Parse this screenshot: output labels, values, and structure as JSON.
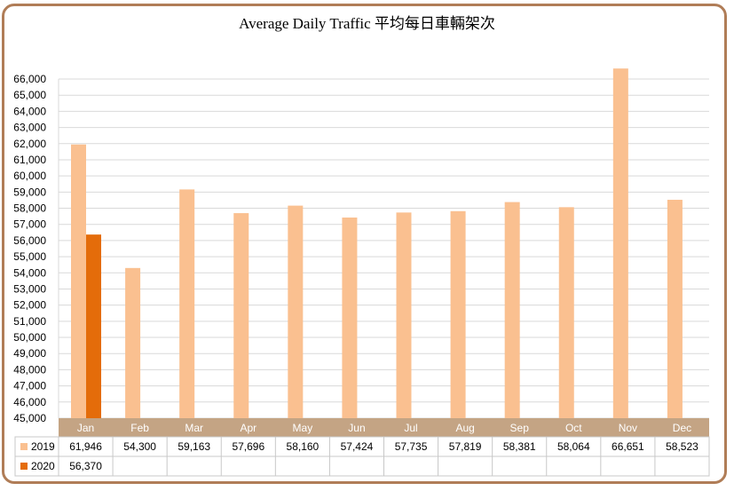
{
  "chart_data": {
    "type": "bar",
    "title": "Average Daily Traffic 平均每日車輛架次",
    "categories": [
      "Jan",
      "Feb",
      "Mar",
      "Apr",
      "May",
      "Jun",
      "Jul",
      "Aug",
      "Sep",
      "Oct",
      "Nov",
      "Dec"
    ],
    "series": [
      {
        "name": "2019",
        "color": "#fac090",
        "values": [
          61946,
          54300,
          59163,
          57696,
          58160,
          57424,
          57735,
          57819,
          58381,
          58064,
          66651,
          58523
        ],
        "labels": [
          "61,946",
          "54,300",
          "59,163",
          "57,696",
          "58,160",
          "57,424",
          "57,735",
          "57,819",
          "58,381",
          "58,064",
          "66,651",
          "58,523"
        ]
      },
      {
        "name": "2020",
        "color": "#e46c0a",
        "values": [
          56370,
          null,
          null,
          null,
          null,
          null,
          null,
          null,
          null,
          null,
          null,
          null
        ],
        "labels": [
          "56,370",
          "",
          "",
          "",
          "",
          "",
          "",
          "",
          "",
          "",
          "",
          ""
        ]
      }
    ],
    "ylim": [
      45000,
      66000
    ],
    "yticks": [
      "45,000",
      "46,000",
      "47,000",
      "48,000",
      "49,000",
      "50,000",
      "51,000",
      "52,000",
      "53,000",
      "54,000",
      "55,000",
      "56,000",
      "57,000",
      "58,000",
      "59,000",
      "60,000",
      "61,000",
      "62,000",
      "63,000",
      "64,000",
      "65,000",
      "66,000"
    ],
    "grid": true,
    "legend": "data-table",
    "category_band_color": "#c4a484"
  }
}
